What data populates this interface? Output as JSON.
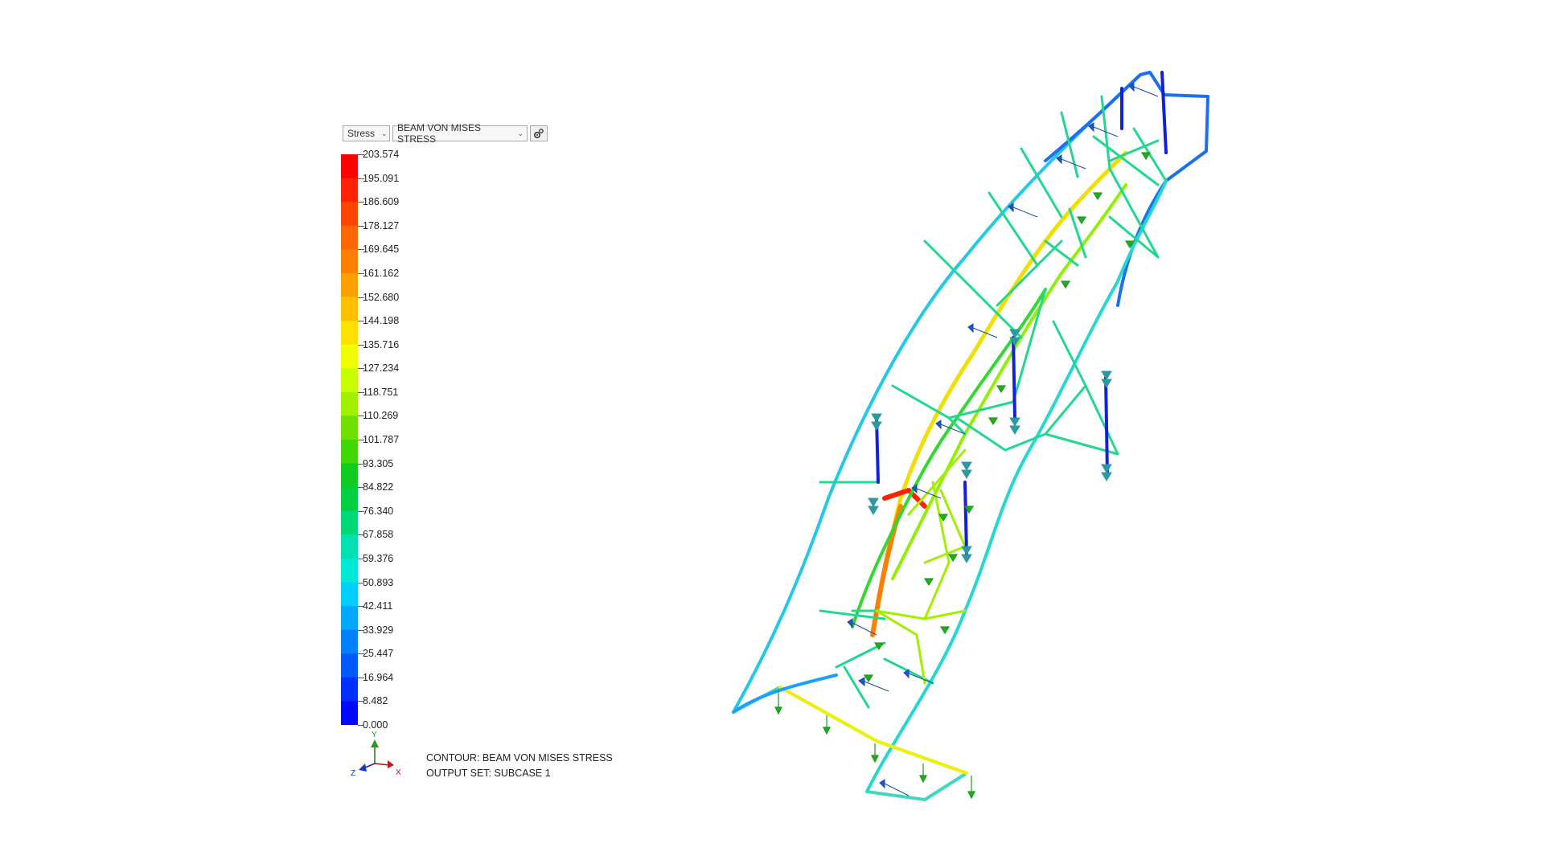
{
  "toolbar": {
    "result_type": "Stress",
    "result_name": "BEAM VON MISES STRESS",
    "settings_icon": "gear-icon"
  },
  "legend": {
    "values": [
      "203.574",
      "195.091",
      "186.609",
      "178.127",
      "169.645",
      "161.162",
      "152.680",
      "144.198",
      "135.716",
      "127.234",
      "118.751",
      "110.269",
      "101.787",
      "93.305",
      "84.822",
      "76.340",
      "67.858",
      "59.376",
      "50.893",
      "42.411",
      "33.929",
      "25.447",
      "16.964",
      "8.482",
      "0.000"
    ],
    "colors": [
      "#ff0000",
      "#ff2200",
      "#ff4400",
      "#ff6600",
      "#ff8000",
      "#ffa000",
      "#ffc000",
      "#ffe000",
      "#f0ff00",
      "#c8ff00",
      "#a0f000",
      "#70e000",
      "#40d800",
      "#10cc20",
      "#00d040",
      "#00d878",
      "#00e0b0",
      "#00e8d8",
      "#00d0ff",
      "#00a8ff",
      "#0080ff",
      "#0058ff",
      "#0030ff",
      "#0008ff"
    ]
  },
  "triad": {
    "x": "X",
    "y": "Y",
    "z": "Z"
  },
  "caption": {
    "line1": "CONTOUR: BEAM VON MISES STRESS",
    "line2": "OUTPUT SET: SUBCASE 1"
  }
}
